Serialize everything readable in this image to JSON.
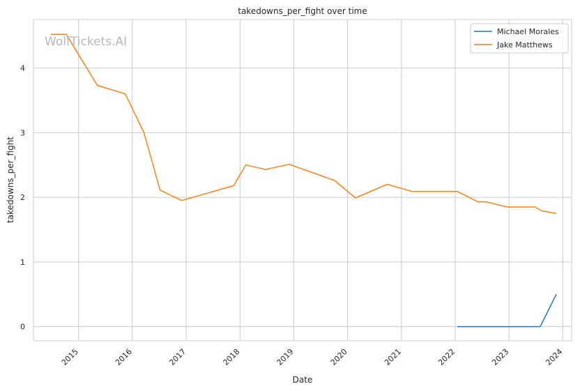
{
  "chart_data": {
    "type": "line",
    "title": "takedowns_per_fight over time",
    "xlabel": "Date",
    "ylabel": "takedowns_per_fight",
    "watermark": "WolfTickets.AI",
    "x_ticks": [
      "2015",
      "2016",
      "2017",
      "2018",
      "2019",
      "2020",
      "2021",
      "2022",
      "2023",
      "2024"
    ],
    "y_ticks": [
      0,
      1,
      2,
      3,
      4
    ],
    "xlim": [
      "2014-03-01",
      "2024-03-01"
    ],
    "ylim": [
      -0.22,
      4.75
    ],
    "grid": true,
    "legend_position": "top-right",
    "series": [
      {
        "name": "Michael Morales",
        "color": "#1f77b4",
        "points": [
          [
            "2022-01-15",
            0
          ],
          [
            "2022-07-15",
            0
          ],
          [
            "2023-01-15",
            0
          ],
          [
            "2023-08-01",
            0
          ],
          [
            "2023-11-18",
            0.5
          ]
        ]
      },
      {
        "name": "Jake Matthews",
        "color": "#ff7f0e",
        "points": [
          [
            "2014-06-28",
            4.52
          ],
          [
            "2014-10-10",
            4.52
          ],
          [
            "2015-05-09",
            3.73
          ],
          [
            "2015-11-14",
            3.6
          ],
          [
            "2016-03-20",
            3.0
          ],
          [
            "2016-07-08",
            2.11
          ],
          [
            "2016-12-02",
            1.95
          ],
          [
            "2017-11-19",
            2.18
          ],
          [
            "2018-02-10",
            2.5
          ],
          [
            "2018-06-23",
            2.43
          ],
          [
            "2018-12-02",
            2.51
          ],
          [
            "2019-10-05",
            2.26
          ],
          [
            "2020-02-23",
            1.99
          ],
          [
            "2020-09-27",
            2.2
          ],
          [
            "2021-03-13",
            2.09
          ],
          [
            "2022-01-15",
            2.09
          ],
          [
            "2022-06-04",
            1.93
          ],
          [
            "2022-07-30",
            1.93
          ],
          [
            "2022-12-17",
            1.85
          ],
          [
            "2023-06-24",
            1.85
          ],
          [
            "2023-08-12",
            1.79
          ],
          [
            "2023-11-18",
            1.75
          ]
        ]
      }
    ]
  }
}
